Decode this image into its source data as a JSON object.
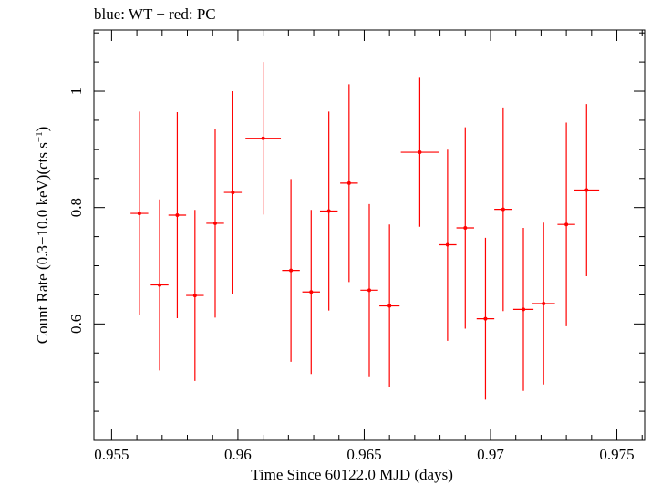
{
  "header_text": "blue: WT − red: PC",
  "chart_data": {
    "type": "scatter",
    "title": "",
    "xlabel": "Time Since 60122.0 MJD (days)",
    "ylabel_main": "Count Rate (0.3−10.0 keV)(cts s",
    "ylabel_sup": "−1",
    "ylabel_close": ")",
    "xlim": [
      0.9543,
      0.9761
    ],
    "ylim": [
      0.4,
      1.105
    ],
    "x_ticks": [
      0.955,
      0.96,
      0.965,
      0.97,
      0.975
    ],
    "x_tick_labels": [
      "0.955",
      "0.96",
      "0.965",
      "0.97",
      "0.975"
    ],
    "y_ticks": [
      0.6,
      0.8,
      1.0
    ],
    "y_tick_labels": [
      "0.6",
      "0.8",
      "1"
    ],
    "series": [
      {
        "color": "#ff0000",
        "points": [
          {
            "x": 0.9561,
            "xerr": 0.00035,
            "y": 0.79,
            "yerr": 0.175
          },
          {
            "x": 0.9569,
            "xerr": 0.00035,
            "y": 0.667,
            "yerr": 0.147
          },
          {
            "x": 0.9576,
            "xerr": 0.00035,
            "y": 0.787,
            "yerr": 0.177
          },
          {
            "x": 0.9583,
            "xerr": 0.00035,
            "y": 0.649,
            "yerr": 0.147
          },
          {
            "x": 0.9591,
            "xerr": 0.00035,
            "y": 0.773,
            "yerr": 0.162
          },
          {
            "x": 0.9598,
            "xerr": 0.00035,
            "y": 0.826,
            "yerr": 0.174
          },
          {
            "x": 0.961,
            "xerr": 0.0007,
            "y": 0.919,
            "yerr": 0.131
          },
          {
            "x": 0.9621,
            "xerr": 0.00035,
            "y": 0.692,
            "yerr": 0.157
          },
          {
            "x": 0.9629,
            "xerr": 0.00035,
            "y": 0.655,
            "yerr": 0.141
          },
          {
            "x": 0.9636,
            "xerr": 0.00035,
            "y": 0.794,
            "yerr": 0.171
          },
          {
            "x": 0.9644,
            "xerr": 0.00035,
            "y": 0.842,
            "yerr": 0.17
          },
          {
            "x": 0.9652,
            "xerr": 0.00035,
            "y": 0.658,
            "yerr": 0.148
          },
          {
            "x": 0.966,
            "xerr": 0.0004,
            "y": 0.631,
            "yerr": 0.14
          },
          {
            "x": 0.9672,
            "xerr": 0.00075,
            "y": 0.895,
            "yerr": 0.128
          },
          {
            "x": 0.9683,
            "xerr": 0.00035,
            "y": 0.736,
            "yerr": 0.165
          },
          {
            "x": 0.969,
            "xerr": 0.00035,
            "y": 0.765,
            "yerr": 0.173
          },
          {
            "x": 0.9698,
            "xerr": 0.00035,
            "y": 0.609,
            "yerr": 0.139
          },
          {
            "x": 0.9705,
            "xerr": 0.00035,
            "y": 0.797,
            "yerr": 0.175
          },
          {
            "x": 0.9713,
            "xerr": 0.0004,
            "y": 0.625,
            "yerr": 0.14
          },
          {
            "x": 0.9721,
            "xerr": 0.00045,
            "y": 0.635,
            "yerr": 0.139
          },
          {
            "x": 0.973,
            "xerr": 0.00035,
            "y": 0.771,
            "yerr": 0.175
          },
          {
            "x": 0.9738,
            "xerr": 0.0005,
            "y": 0.83,
            "yerr": 0.148
          }
        ]
      }
    ]
  }
}
